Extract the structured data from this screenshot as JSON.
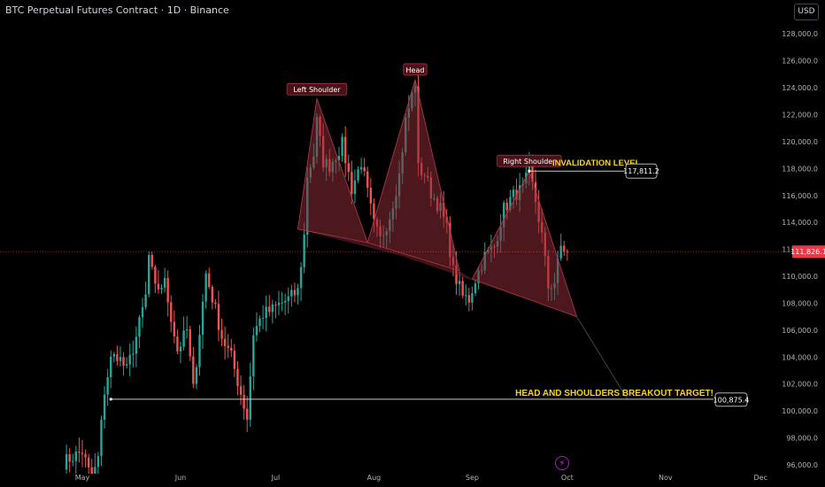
{
  "header": {
    "symbol_title": "BTC Perpetual Futures Contract · 1D · Binance",
    "currency_label": "USD"
  },
  "chart_data": {
    "type": "candlestick",
    "title": "BTC Perpetual Futures Contract · 1D · Binance",
    "xlabel": "",
    "ylabel": "",
    "ylim": [
      95000,
      129500
    ],
    "y_ticks": [
      96000,
      98000,
      100000,
      102000,
      104000,
      106000,
      108000,
      110000,
      112000,
      114000,
      116000,
      118000,
      120000,
      122000,
      124000,
      126000,
      128000
    ],
    "y_tick_labels": [
      "96,000.0",
      "98,000.0",
      "100,000.0",
      "102,000.0",
      "104,000.0",
      "106,000.0",
      "108,000.0",
      "110,000.0",
      "112,000.0",
      "114,000.0",
      "116,000.0",
      "118,000.0",
      "120,000.0",
      "122,000.0",
      "124,000.0",
      "126,000.0",
      "128,000.0"
    ],
    "x_ticks": [
      "May",
      "Jun",
      "Jul",
      "Aug",
      "Sep",
      "Oct",
      "Nov",
      "Dec"
    ],
    "x_tick_dates": [
      "2025-05-01",
      "2025-06-01",
      "2025-07-01",
      "2025-08-01",
      "2025-09-01",
      "2025-10-01",
      "2025-11-01",
      "2025-12-01"
    ],
    "price_path": [
      [
        "2025-04-25",
        96200
      ],
      [
        "2025-05-01",
        97000
      ],
      [
        "2025-05-04",
        94800
      ],
      [
        "2025-05-06",
        96500
      ],
      [
        "2025-05-08",
        101500
      ],
      [
        "2025-05-10",
        103800
      ],
      [
        "2025-05-12",
        104200
      ],
      [
        "2025-05-15",
        103000
      ],
      [
        "2025-05-18",
        105500
      ],
      [
        "2025-05-21",
        108500
      ],
      [
        "2025-05-22",
        111500
      ],
      [
        "2025-05-24",
        109000
      ],
      [
        "2025-05-27",
        109500
      ],
      [
        "2025-05-31",
        104500
      ],
      [
        "2025-06-03",
        106000
      ],
      [
        "2025-06-05",
        101600
      ],
      [
        "2025-06-09",
        110200
      ],
      [
        "2025-06-12",
        107500
      ],
      [
        "2025-06-14",
        105500
      ],
      [
        "2025-06-17",
        104000
      ],
      [
        "2025-06-22",
        99500
      ],
      [
        "2025-06-24",
        105800
      ],
      [
        "2025-06-27",
        107200
      ],
      [
        "2025-06-30",
        107500
      ],
      [
        "2025-07-02",
        107900
      ],
      [
        "2025-07-05",
        108300
      ],
      [
        "2025-07-08",
        108900
      ],
      [
        "2025-07-10",
        113000
      ],
      [
        "2025-07-11",
        117500
      ],
      [
        "2025-07-13",
        119000
      ],
      [
        "2025-07-14",
        121500
      ],
      [
        "2025-07-16",
        118500
      ],
      [
        "2025-07-18",
        118200
      ],
      [
        "2025-07-22",
        119800
      ],
      [
        "2025-07-25",
        116500
      ],
      [
        "2025-07-28",
        118500
      ],
      [
        "2025-08-01",
        113800
      ],
      [
        "2025-08-03",
        112700
      ],
      [
        "2025-08-06",
        114500
      ],
      [
        "2025-08-09",
        117500
      ],
      [
        "2025-08-11",
        121500
      ],
      [
        "2025-08-14",
        124400
      ],
      [
        "2025-08-15",
        118000
      ],
      [
        "2025-08-17",
        117600
      ],
      [
        "2025-08-19",
        116200
      ],
      [
        "2025-08-22",
        115000
      ],
      [
        "2025-08-24",
        113500
      ],
      [
        "2025-08-26",
        110400
      ],
      [
        "2025-08-29",
        108500
      ],
      [
        "2025-08-31",
        108300
      ],
      [
        "2025-09-02",
        109800
      ],
      [
        "2025-09-05",
        111500
      ],
      [
        "2025-09-08",
        112200
      ],
      [
        "2025-09-11",
        115000
      ],
      [
        "2025-09-14",
        116000
      ],
      [
        "2025-09-17",
        116500
      ],
      [
        "2025-09-19",
        117800
      ],
      [
        "2025-09-21",
        115600
      ],
      [
        "2025-09-23",
        113000
      ],
      [
        "2025-09-25",
        109200
      ],
      [
        "2025-09-27",
        109600
      ],
      [
        "2025-09-29",
        112200
      ],
      [
        "2025-10-01",
        111826
      ]
    ],
    "current_price": 111826.1,
    "current_price_label": "111,826.1",
    "pattern": {
      "name": "Head and Shoulders",
      "labels": [
        "Left Shoulder",
        "Head",
        "Right Shoulder"
      ],
      "neckline": [
        [
          "2025-07-08",
          113500
        ],
        [
          "2025-10-04",
          107000
        ]
      ],
      "left_shoulder": [
        [
          "2025-07-08",
          113500
        ],
        [
          "2025-07-14",
          123200
        ],
        [
          "2025-07-30",
          112500
        ]
      ],
      "head": [
        [
          "2025-07-30",
          112500
        ],
        [
          "2025-08-14",
          124600
        ],
        [
          "2025-08-28",
          110400
        ]
      ],
      "right_shoulder": [
        [
          "2025-09-01",
          109800
        ],
        [
          "2025-09-19",
          117811
        ],
        [
          "2025-10-04",
          107000
        ]
      ]
    },
    "annotations": {
      "invalidation_label": "INVALIDATION LEVEL",
      "invalidation_value": 117811.2,
      "invalidation_value_label": "117,811.2",
      "target_label": "HEAD AND SHOULDERS BREAKOUT TARGET!",
      "target_value": 100875.4,
      "target_value_label": "100,875.4",
      "target_line_start": "2025-05-10",
      "projection_path": [
        [
          "2025-10-04",
          107000
        ],
        [
          "2025-10-20",
          100875
        ]
      ]
    },
    "colors": {
      "background": "#000000",
      "up": "#26a69a",
      "down": "#ef5350",
      "pattern_fill": "#8b2a35",
      "annotation_text": "#f5d320",
      "price_line": "#ff5252"
    },
    "grid": false,
    "legend": "none"
  }
}
